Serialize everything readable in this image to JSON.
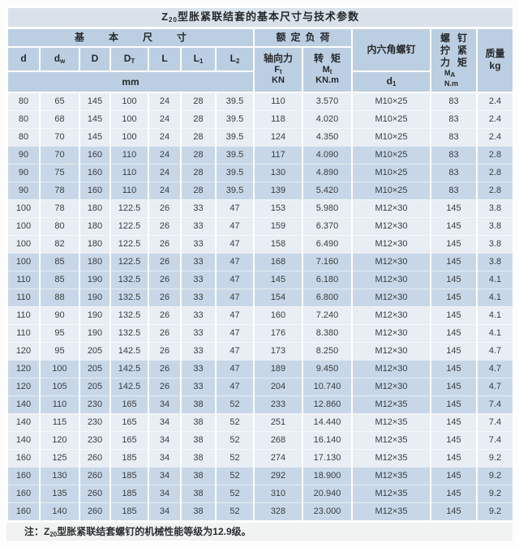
{
  "page": {
    "title": {
      "prefix": "Z",
      "prefix_sub": "20",
      "text": "型胀紧联结套的基本尺寸与技术参数"
    },
    "note": {
      "label": "注：",
      "prefix": "Z",
      "prefix_sub": "20",
      "text": "型胀紧联结套螺钉的机械性能等级为12.9级。"
    }
  },
  "colors": {
    "title_bg": "#d9e2ea",
    "header_bg": "#bccfe2",
    "band_light": "#e9eef4",
    "band_dark": "#c7d7e7",
    "note_bg": "#f1f2f2",
    "text": "#3a3e42"
  },
  "table": {
    "groups": {
      "basic_dims": "基本尺寸",
      "rated_load": "额定负荷",
      "hex_screw": "内六角螺钉",
      "screw_tightening": {
        "line1": "螺钉",
        "line2": "拧紧",
        "line3": "力矩",
        "sym_main": "M",
        "sym_sub": "A",
        "unit": "N.m"
      },
      "mass": {
        "label": "质量",
        "unit": "kg"
      }
    },
    "dim_columns": [
      {
        "main": "d",
        "sub": ""
      },
      {
        "main": "d",
        "sub": "w"
      },
      {
        "main": "D",
        "sub": ""
      },
      {
        "main": "D",
        "sub": "T"
      },
      {
        "main": "L",
        "sub": ""
      },
      {
        "main": "L",
        "sub": "1"
      },
      {
        "main": "L",
        "sub": "2"
      }
    ],
    "unit_mm": "mm",
    "axial_force": {
      "label": "轴向力",
      "sym_main": "F",
      "sym_sub": "t",
      "unit": "KN"
    },
    "torque": {
      "label": "转矩",
      "sym_main": "M",
      "sym_sub": "t",
      "unit": "KN.m"
    },
    "d1": {
      "main": "d",
      "sub": "1"
    },
    "rows": [
      [
        "80",
        "65",
        "145",
        "100",
        "24",
        "28",
        "39.5",
        "110",
        "3.570",
        "M10×25",
        "83",
        "2.4"
      ],
      [
        "80",
        "68",
        "145",
        "100",
        "24",
        "28",
        "39.5",
        "118",
        "4.020",
        "M10×25",
        "83",
        "2.4"
      ],
      [
        "80",
        "70",
        "145",
        "100",
        "24",
        "28",
        "39.5",
        "124",
        "4.350",
        "M10×25",
        "83",
        "2.4"
      ],
      [
        "90",
        "70",
        "160",
        "110",
        "24",
        "28",
        "39.5",
        "117",
        "4.090",
        "M10×25",
        "83",
        "2.8"
      ],
      [
        "90",
        "75",
        "160",
        "110",
        "24",
        "28",
        "39.5",
        "130",
        "4.890",
        "M10×25",
        "83",
        "2.8"
      ],
      [
        "90",
        "78",
        "160",
        "110",
        "24",
        "28",
        "39.5",
        "139",
        "5.420",
        "M10×25",
        "83",
        "2.8"
      ],
      [
        "100",
        "78",
        "180",
        "122.5",
        "26",
        "33",
        "47",
        "153",
        "5.980",
        "M12×30",
        "145",
        "3.8"
      ],
      [
        "100",
        "80",
        "180",
        "122.5",
        "26",
        "33",
        "47",
        "159",
        "6.370",
        "M12×30",
        "145",
        "3.8"
      ],
      [
        "100",
        "82",
        "180",
        "122.5",
        "26",
        "33",
        "47",
        "158",
        "6.490",
        "M12×30",
        "145",
        "3.8"
      ],
      [
        "100",
        "85",
        "180",
        "122.5",
        "26",
        "33",
        "47",
        "168",
        "7.160",
        "M12×30",
        "145",
        "3.8"
      ],
      [
        "110",
        "85",
        "190",
        "132.5",
        "26",
        "33",
        "47",
        "145",
        "6.180",
        "M12×30",
        "145",
        "4.1"
      ],
      [
        "110",
        "88",
        "190",
        "132.5",
        "26",
        "33",
        "47",
        "154",
        "6.800",
        "M12×30",
        "145",
        "4.1"
      ],
      [
        "110",
        "90",
        "190",
        "132.5",
        "26",
        "33",
        "47",
        "160",
        "7.240",
        "M12×30",
        "145",
        "4.1"
      ],
      [
        "110",
        "95",
        "190",
        "132.5",
        "26",
        "33",
        "47",
        "176",
        "8.380",
        "M12×30",
        "145",
        "4.1"
      ],
      [
        "120",
        "95",
        "205",
        "142.5",
        "26",
        "33",
        "47",
        "173",
        "8.250",
        "M12×30",
        "145",
        "4.7"
      ],
      [
        "120",
        "100",
        "205",
        "142.5",
        "26",
        "33",
        "47",
        "189",
        "9.450",
        "M12×30",
        "145",
        "4.7"
      ],
      [
        "120",
        "105",
        "205",
        "142.5",
        "26",
        "33",
        "47",
        "204",
        "10.740",
        "M12×30",
        "145",
        "4.7"
      ],
      [
        "140",
        "110",
        "230",
        "165",
        "34",
        "38",
        "52",
        "233",
        "12.860",
        "M12×35",
        "145",
        "7.4"
      ],
      [
        "140",
        "115",
        "230",
        "165",
        "34",
        "38",
        "52",
        "251",
        "14.440",
        "M12×35",
        "145",
        "7.4"
      ],
      [
        "140",
        "120",
        "230",
        "165",
        "34",
        "38",
        "52",
        "268",
        "16.140",
        "M12×35",
        "145",
        "7.4"
      ],
      [
        "160",
        "125",
        "260",
        "185",
        "34",
        "38",
        "52",
        "274",
        "17.130",
        "M12×35",
        "145",
        "9.2"
      ],
      [
        "160",
        "130",
        "260",
        "185",
        "34",
        "38",
        "52",
        "292",
        "18.900",
        "M12×35",
        "145",
        "9.2"
      ],
      [
        "160",
        "135",
        "260",
        "185",
        "34",
        "38",
        "52",
        "310",
        "20.940",
        "M12×35",
        "145",
        "9.2"
      ],
      [
        "160",
        "140",
        "260",
        "185",
        "34",
        "38",
        "52",
        "328",
        "23.000",
        "M12×35",
        "145",
        "9.2"
      ]
    ]
  }
}
